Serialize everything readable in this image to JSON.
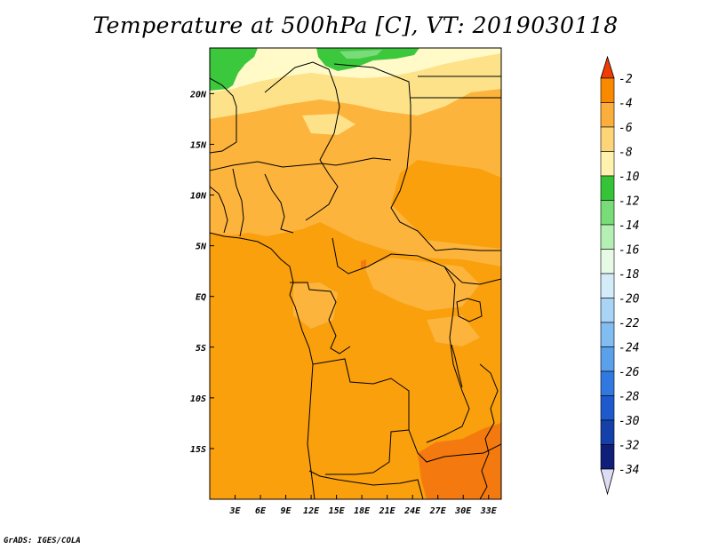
{
  "title": "Temperature at 500hPa [C], VT: 2019030118",
  "credit": "GrADS: IGES/COLA",
  "map": {
    "lon_range": [
      0,
      34.5
    ],
    "lat_range": [
      -20,
      24.5
    ],
    "x_ticks": [
      "3E",
      "6E",
      "9E",
      "12E",
      "15E",
      "18E",
      "21E",
      "24E",
      "27E",
      "30E",
      "33E"
    ],
    "x_tick_values": [
      3,
      6,
      9,
      12,
      15,
      18,
      21,
      24,
      27,
      30,
      33
    ],
    "y_ticks": [
      "20N",
      "15N",
      "10N",
      "5N",
      "EQ",
      "5S",
      "10S",
      "15S"
    ],
    "y_tick_values": [
      20,
      15,
      10,
      5,
      0,
      -5,
      -10,
      -15
    ],
    "contour_colors": {
      "c-14_-12": "#3cc83c",
      "c-12_-10": "#fffac8",
      "c-10_-8": "#fde28a",
      "c-8_-6": "#fcb43c",
      "c-6_-4": "#f9a00c",
      "c-4_-2": "#f47a10"
    }
  },
  "colorbar": {
    "labels": [
      "-2",
      "-4",
      "-6",
      "-8",
      "-10",
      "-12",
      "-14",
      "-16",
      "-18",
      "-20",
      "-22",
      "-24",
      "-26",
      "-28",
      "-30",
      "-32",
      "-34"
    ],
    "colors": [
      "#f03c00",
      "#f98a00",
      "#fbae3c",
      "#fbd577",
      "#fff2af",
      "#37c337",
      "#78dc78",
      "#b4f0b4",
      "#e6fae6",
      "#d4ecfa",
      "#aad4f5",
      "#82bcf0",
      "#5aa0eb",
      "#3278e1",
      "#1e5acd",
      "#1440aa",
      "#0f1e78"
    ],
    "top_color": "#f03c00",
    "bottom_color": "#dcdcf5"
  }
}
